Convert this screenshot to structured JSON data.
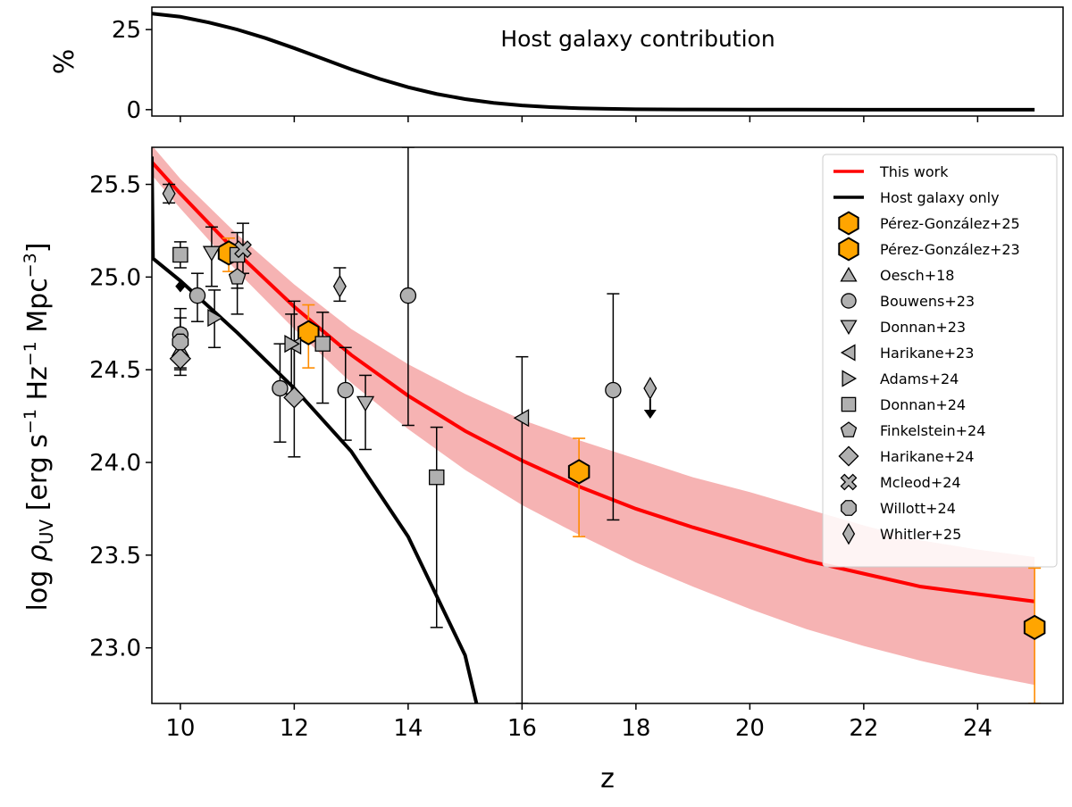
{
  "chart_data": [
    {
      "type": "line",
      "panel": "top",
      "title": "",
      "annotation": "Host galaxy contribution",
      "ylabel": "%",
      "xlim": [
        9.5,
        25.5
      ],
      "ylim": [
        -2,
        32
      ],
      "yticks": [
        0,
        25
      ],
      "ytick_labels": [
        "0",
        "25"
      ],
      "series": [
        {
          "name": "Host galaxy contribution",
          "color": "#000000",
          "x": [
            9.5,
            10.0,
            10.5,
            11.0,
            11.5,
            12.0,
            12.5,
            13.0,
            13.5,
            14.0,
            14.5,
            15.0,
            15.5,
            16.0,
            16.5,
            17.0,
            17.5,
            18.0,
            19.0,
            20.0,
            22.0,
            25.0
          ],
          "y": [
            30.0,
            29.0,
            27.2,
            25.0,
            22.3,
            19.2,
            15.9,
            12.6,
            9.6,
            7.0,
            4.9,
            3.3,
            2.1,
            1.3,
            0.8,
            0.45,
            0.25,
            0.12,
            0.05,
            0.02,
            0.0,
            0.0
          ]
        }
      ]
    },
    {
      "type": "scatter",
      "panel": "bottom",
      "title": "",
      "xlabel": "z",
      "ylabel": "log ρ_UV [erg s⁻¹ Hz⁻¹ Mpc⁻³]",
      "ylabel_parts": {
        "log": "log ",
        "rho": "ρ",
        "sub": "UV",
        "bracket_open": " [erg s",
        "exp1": "−1",
        "hz": " Hz",
        "exp2": "−1",
        "mpc": " Mpc",
        "exp3": "−3",
        "bracket_close": "]"
      },
      "xlim": [
        9.5,
        25.5
      ],
      "ylim": [
        22.7,
        25.7
      ],
      "xticks": [
        10,
        12,
        14,
        16,
        18,
        20,
        22,
        24
      ],
      "xtick_labels": [
        "10",
        "12",
        "14",
        "16",
        "18",
        "20",
        "22",
        "24"
      ],
      "yticks": [
        23.0,
        23.5,
        24.0,
        24.5,
        25.0,
        25.5
      ],
      "ytick_labels": [
        "23.0",
        "23.5",
        "24.0",
        "24.5",
        "25.0",
        "25.5"
      ],
      "legend_position": "top-right",
      "lines": [
        {
          "name": "This work",
          "color": "#ff0000",
          "band_color": "#f4a0a0",
          "x": [
            9.5,
            10,
            11,
            12,
            13,
            14,
            15,
            16,
            17,
            18,
            19,
            20,
            21,
            22,
            23,
            24,
            25
          ],
          "y": [
            25.62,
            25.45,
            25.13,
            24.84,
            24.58,
            24.36,
            24.17,
            24.01,
            23.87,
            23.75,
            23.65,
            23.56,
            23.47,
            23.4,
            23.33,
            23.29,
            23.25
          ],
          "band_lower": [
            25.55,
            25.37,
            25.03,
            24.72,
            24.43,
            24.18,
            23.96,
            23.77,
            23.61,
            23.46,
            23.33,
            23.21,
            23.1,
            23.01,
            22.93,
            22.86,
            22.8
          ],
          "band_upper": [
            25.71,
            25.53,
            25.23,
            24.96,
            24.72,
            24.53,
            24.37,
            24.23,
            24.12,
            24.02,
            23.92,
            23.84,
            23.75,
            23.66,
            23.58,
            23.53,
            23.49
          ]
        },
        {
          "name": "Host galaxy only",
          "color": "#000000",
          "x": [
            9.5,
            9.52,
            10,
            11,
            12,
            13,
            14,
            15,
            15.2
          ],
          "y": [
            25.65,
            25.1,
            24.98,
            24.7,
            24.4,
            24.06,
            23.6,
            22.96,
            22.7
          ]
        }
      ],
      "series": [
        {
          "name": "Pérez-González+25",
          "marker": "hexagon",
          "color": "#ffa500",
          "errcolor": "#ff8c00",
          "points": [
            {
              "x": 17.0,
              "y": 23.95,
              "lo": 23.6,
              "hi": 24.13
            },
            {
              "x": 25.0,
              "y": 23.11,
              "lo": 22.7,
              "hi": 23.43
            }
          ]
        },
        {
          "name": "Pérez-González+23",
          "marker": "hexagon",
          "color": "#ffa500",
          "errcolor": "#ff8c00",
          "points": [
            {
              "x": 10.85,
              "y": 25.13,
              "lo": 25.03,
              "hi": 25.21
            },
            {
              "x": 12.25,
              "y": 24.7,
              "lo": 24.51,
              "hi": 24.85
            }
          ]
        },
        {
          "name": "Oesch+18",
          "marker": "triangle-up",
          "color": "#b0b0b0",
          "errcolor": "#000000",
          "points": [
            {
              "x": 10.0,
              "y": 24.61,
              "lo": 24.51,
              "hi": 24.72
            }
          ]
        },
        {
          "name": "Bouwens+23",
          "marker": "circle",
          "color": "#b0b0b0",
          "errcolor": "#000000",
          "points": [
            {
              "x": 10.0,
              "y": 24.69,
              "lo": 24.55,
              "hi": 24.83
            },
            {
              "x": 10.3,
              "y": 24.9,
              "lo": 24.76,
              "hi": 25.02
            },
            {
              "x": 11.75,
              "y": 24.4,
              "lo": 24.11,
              "hi": 24.64
            },
            {
              "x": 12.9,
              "y": 24.39,
              "lo": 24.12,
              "hi": 24.62
            },
            {
              "x": 14.0,
              "y": 24.9,
              "lo": 24.2,
              "hi": 25.7
            },
            {
              "x": 17.6,
              "y": 24.39,
              "lo": 23.69,
              "hi": 24.91
            }
          ]
        },
        {
          "name": "Donnan+23",
          "marker": "triangle-down",
          "color": "#b0b0b0",
          "errcolor": "#000000",
          "points": [
            {
              "x": 10.55,
              "y": 25.13,
              "lo": 24.95,
              "hi": 25.27
            },
            {
              "x": 13.25,
              "y": 24.32,
              "lo": 24.07,
              "hi": 24.47
            }
          ]
        },
        {
          "name": "Harikane+23",
          "marker": "triangle-left",
          "color": "#b0b0b0",
          "errcolor": "#000000",
          "points": [
            {
              "x": 12.0,
              "y": 24.63,
              "lo": 24.36,
              "hi": 24.87
            },
            {
              "x": 16.0,
              "y": 24.24,
              "lo": 22.7,
              "hi": 24.57
            }
          ]
        },
        {
          "name": "Adams+24",
          "marker": "triangle-right",
          "color": "#b0b0b0",
          "errcolor": "#000000",
          "points": [
            {
              "x": 10.6,
              "y": 24.78,
              "lo": 24.62,
              "hi": 24.93
            },
            {
              "x": 11.95,
              "y": 24.64,
              "lo": 24.37,
              "hi": 24.8
            }
          ]
        },
        {
          "name": "Donnan+24",
          "marker": "square",
          "color": "#b0b0b0",
          "errcolor": "#000000",
          "points": [
            {
              "x": 10.0,
              "y": 25.12,
              "lo": 25.05,
              "hi": 25.19
            },
            {
              "x": 11.0,
              "y": 25.12,
              "lo": 24.94,
              "hi": 25.24
            },
            {
              "x": 12.5,
              "y": 24.64,
              "lo": 24.32,
              "hi": 24.81
            },
            {
              "x": 14.5,
              "y": 23.92,
              "lo": 23.11,
              "hi": 24.19
            }
          ]
        },
        {
          "name": "Finkelstein+24",
          "marker": "pentagon",
          "color": "#b0b0b0",
          "errcolor": "#000000",
          "points": [
            {
              "x": 11.0,
              "y": 25.0,
              "lo": 24.8,
              "hi": 25.14
            }
          ]
        },
        {
          "name": "Harikane+24",
          "marker": "diamond",
          "color": "#b0b0b0",
          "errcolor": "#000000",
          "points": [
            {
              "x": 10.0,
              "y": 24.56,
              "lo": 24.47,
              "hi": 24.64
            },
            {
              "x": 12.0,
              "y": 24.35,
              "lo": 24.03,
              "hi": 24.63
            }
          ]
        },
        {
          "name": "Mcleod+24",
          "marker": "x",
          "color": "#b0b0b0",
          "errcolor": "#000000",
          "points": [
            {
              "x": 11.1,
              "y": 25.15,
              "lo": 25.02,
              "hi": 25.29
            }
          ]
        },
        {
          "name": "Willott+24",
          "marker": "octagon",
          "color": "#b0b0b0",
          "errcolor": "#000000",
          "points": [
            {
              "x": 10.0,
              "y": 24.65,
              "lo": 24.5,
              "hi": 24.78
            }
          ]
        },
        {
          "name": "Whitler+25",
          "marker": "thin-diamond",
          "color": "#b0b0b0",
          "errcolor": "#000000",
          "points": [
            {
              "x": 9.8,
              "y": 25.45,
              "lo": 25.4,
              "hi": 25.5
            },
            {
              "x": 12.8,
              "y": 24.95,
              "lo": 24.87,
              "hi": 25.05
            },
            {
              "x": 18.25,
              "y": 24.4,
              "upper_limit": true
            }
          ]
        }
      ],
      "extra_markers": [
        {
          "x": 10.0,
          "y": 24.95,
          "marker": "small-diamond",
          "color": "#000000"
        }
      ]
    }
  ]
}
